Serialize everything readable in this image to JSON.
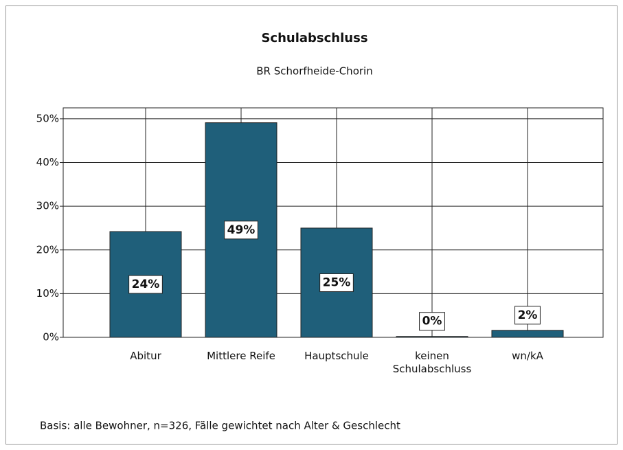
{
  "chart_data": {
    "type": "bar",
    "title": "Schulabschluss",
    "subtitle": "BR Schorfheide-Chorin",
    "categories": [
      "Abitur",
      "Mittlere Reife",
      "Hauptschule",
      "keinen Schulabschluss",
      "wn/kA"
    ],
    "values": [
      24.2,
      49.1,
      25.0,
      0.2,
      1.6
    ],
    "value_labels": [
      "24%",
      "49%",
      "25%",
      "0%",
      "2%"
    ],
    "color": "#1f5f7a",
    "ylim": [
      0,
      52.5
    ],
    "yticks": [
      {
        "value": 0,
        "label": "0%"
      },
      {
        "value": 10,
        "label": "10%"
      },
      {
        "value": 20,
        "label": "20%"
      },
      {
        "value": 30,
        "label": "30%"
      },
      {
        "value": 40,
        "label": "40%"
      },
      {
        "value": 50,
        "label": "50%"
      }
    ],
    "grid": true,
    "note": "Basis: alle Bewohner, n=326, Fälle gewichtet nach Alter & Geschlecht"
  }
}
